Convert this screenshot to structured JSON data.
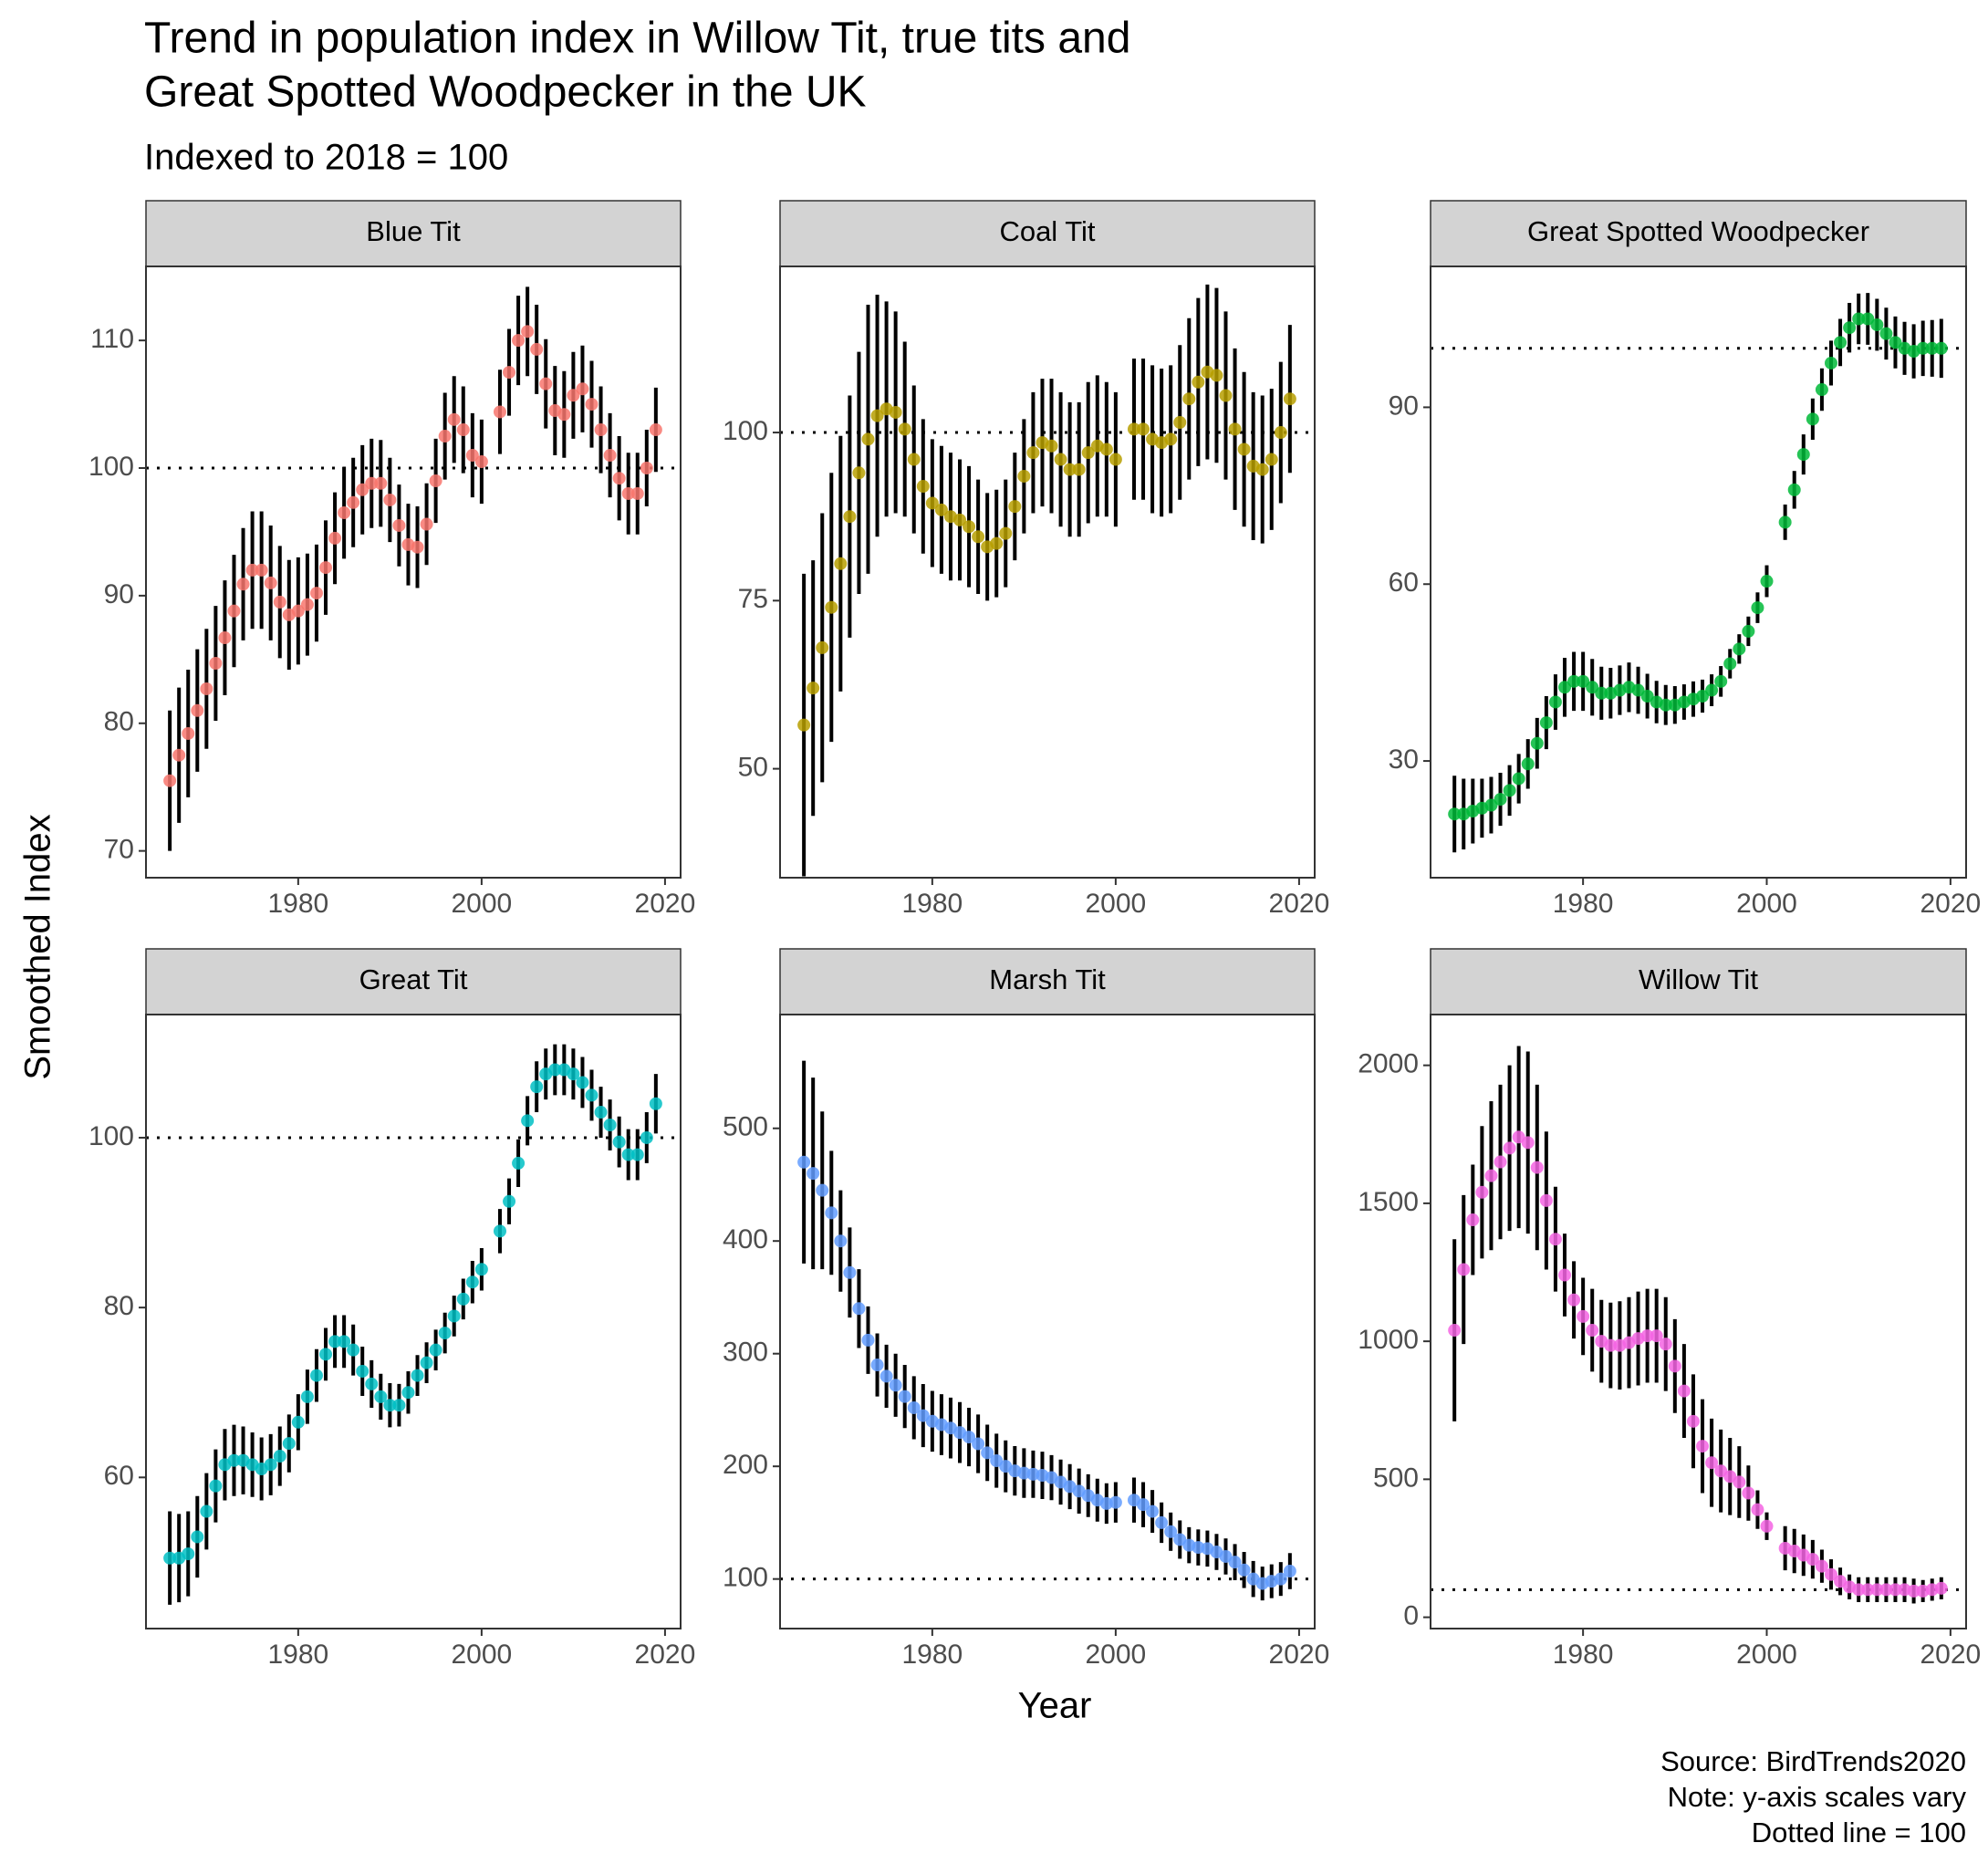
{
  "title": [
    "Trend in population index in Willow Tit, true tits and",
    "Great Spotted Woodpecker in the UK"
  ],
  "subtitle": "Indexed to 2018 = 100",
  "x_label": "Year",
  "y_label": "Smoothed Index",
  "caption": [
    "Source: BirdTrends2020",
    "Note: y-axis scales vary",
    "Dotted line = 100"
  ],
  "chart_data": [
    {
      "type": "errorbar",
      "title": "Blue Tit",
      "color": "#F8766D",
      "x": [
        1966,
        1967,
        1968,
        1969,
        1970,
        1971,
        1972,
        1973,
        1974,
        1975,
        1976,
        1977,
        1978,
        1979,
        1980,
        1981,
        1982,
        1983,
        1984,
        1985,
        1986,
        1987,
        1988,
        1989,
        1990,
        1991,
        1992,
        1993,
        1994,
        1995,
        1996,
        1997,
        1998,
        1999,
        2000,
        2002,
        2003,
        2004,
        2005,
        2006,
        2007,
        2008,
        2009,
        2010,
        2011,
        2012,
        2013,
        2014,
        2015,
        2016,
        2017,
        2018,
        2019
      ],
      "values": [
        75.5,
        77.5,
        79.2,
        81,
        82.7,
        84.7,
        86.7,
        88.8,
        90.9,
        92,
        92,
        91,
        89.5,
        88.5,
        88.8,
        89.3,
        90.2,
        92.2,
        94.5,
        96.5,
        97.3,
        98.3,
        98.8,
        98.8,
        97.5,
        95.5,
        94,
        93.8,
        95.6,
        99,
        102.5,
        103.8,
        103,
        101,
        100.5,
        104.4,
        107.5,
        110,
        110.7,
        109.3,
        106.6,
        104.5,
        104.2,
        105.7,
        106.2,
        105,
        103,
        101,
        99.2,
        98,
        98,
        100,
        103
      ],
      "errors": [
        5.5,
        5.3,
        5,
        4.8,
        4.7,
        4.5,
        4.5,
        4.4,
        4.4,
        4.6,
        4.6,
        4.5,
        4.4,
        4.3,
        4.2,
        4,
        3.8,
        3.7,
        3.6,
        3.6,
        3.5,
        3.5,
        3.5,
        3.4,
        3.3,
        3.2,
        3.2,
        3.2,
        3.2,
        3.3,
        3.4,
        3.4,
        3.4,
        3.3,
        3.3,
        3.3,
        3.4,
        3.5,
        3.5,
        3.5,
        3.5,
        3.5,
        3.4,
        3.4,
        3.4,
        3.4,
        3.4,
        3.3,
        3.3,
        3.2,
        3.2,
        3,
        3.3
      ],
      "xlim": [
        1963.4,
        2021.7
      ],
      "xticks": [
        1980,
        2000,
        2020
      ],
      "ylim": [
        67.9,
        115.8
      ],
      "yticks": [
        70,
        80,
        90,
        100,
        110
      ],
      "hline": 100
    },
    {
      "type": "errorbar",
      "title": "Coal Tit",
      "color": "#B79F00",
      "x": [
        1966,
        1967,
        1968,
        1969,
        1970,
        1971,
        1972,
        1973,
        1974,
        1975,
        1976,
        1977,
        1978,
        1979,
        1980,
        1981,
        1982,
        1983,
        1984,
        1985,
        1986,
        1987,
        1988,
        1989,
        1990,
        1991,
        1992,
        1993,
        1994,
        1995,
        1996,
        1997,
        1998,
        1999,
        2000,
        2002,
        2003,
        2004,
        2005,
        2006,
        2007,
        2008,
        2009,
        2010,
        2011,
        2012,
        2013,
        2014,
        2015,
        2016,
        2017,
        2018,
        2019
      ],
      "values": [
        56.5,
        62,
        68,
        74,
        80.5,
        87.5,
        94,
        99,
        102.5,
        103.5,
        103,
        100.5,
        96,
        92,
        89.5,
        88.5,
        87.5,
        87,
        86,
        84.5,
        83,
        83.5,
        85,
        89,
        93.5,
        97,
        98.5,
        98,
        96,
        94.5,
        94.5,
        97,
        98,
        97.5,
        96,
        100.5,
        100.5,
        99,
        98.5,
        99,
        101.5,
        105,
        107.5,
        109,
        108.5,
        105.5,
        100.5,
        97.5,
        95,
        94.5,
        96,
        100,
        105
      ],
      "errors": [
        22.5,
        19,
        20,
        20,
        19,
        18,
        18,
        20,
        18,
        16,
        15,
        13,
        11,
        10,
        9.5,
        9.5,
        9.5,
        9,
        9,
        8.5,
        8,
        8,
        8,
        8,
        8.5,
        9,
        9.5,
        10,
        10,
        10,
        10,
        10.5,
        10.5,
        10,
        10,
        10.5,
        10.5,
        11,
        11,
        11,
        11.5,
        12,
        12.5,
        13,
        13,
        12.5,
        12,
        11.5,
        11,
        11,
        10.5,
        10.5,
        11
      ],
      "xlim": [
        1963.4,
        2021.7
      ],
      "xticks": [
        1980,
        2000,
        2020
      ],
      "ylim": [
        33.8,
        124.7
      ],
      "yticks": [
        50,
        75,
        100
      ],
      "hline": 100
    },
    {
      "type": "errorbar",
      "title": "Great Spotted Woodpecker",
      "color": "#00BA38",
      "x": [
        1966,
        1967,
        1968,
        1969,
        1970,
        1971,
        1972,
        1973,
        1974,
        1975,
        1976,
        1977,
        1978,
        1979,
        1980,
        1981,
        1982,
        1983,
        1984,
        1985,
        1986,
        1987,
        1988,
        1989,
        1990,
        1991,
        1992,
        1993,
        1994,
        1995,
        1996,
        1997,
        1998,
        1999,
        2000,
        2002,
        2003,
        2004,
        2005,
        2006,
        2007,
        2008,
        2009,
        2010,
        2011,
        2012,
        2013,
        2014,
        2015,
        2016,
        2017,
        2018,
        2019
      ],
      "values": [
        21,
        21,
        21.5,
        22,
        22.5,
        23.5,
        25,
        27,
        29.5,
        33,
        36.5,
        40,
        42.5,
        43.5,
        43.5,
        42.5,
        41.5,
        41.5,
        42,
        42.5,
        42,
        41,
        40,
        39.5,
        39.5,
        40,
        40.5,
        41,
        42,
        43.5,
        46.5,
        49,
        52,
        56,
        60.5,
        70.5,
        76,
        82,
        88,
        93,
        97.5,
        101,
        103.5,
        105,
        105,
        104,
        102.5,
        101,
        100,
        99.5,
        100,
        100,
        100
      ],
      "errors": [
        6.5,
        6,
        5.5,
        5,
        4.8,
        4.5,
        4.3,
        4.2,
        4.2,
        4.3,
        4.5,
        4.7,
        5,
        5,
        5,
        4.8,
        4.5,
        4.3,
        4.2,
        4.2,
        4,
        3.8,
        3.6,
        3.4,
        3.2,
        3,
        3,
        2.8,
        2.7,
        2.6,
        2.5,
        2.5,
        2.5,
        2.6,
        2.7,
        3,
        3.2,
        3.4,
        3.5,
        3.6,
        3.8,
        4,
        4.2,
        4.3,
        4.4,
        4.4,
        4.4,
        4.4,
        4.5,
        4.6,
        4.7,
        4.8,
        5
      ],
      "xlim": [
        1963.4,
        2021.7
      ],
      "xticks": [
        1980,
        2000,
        2020
      ],
      "ylim": [
        10.2,
        113.9
      ],
      "yticks": [
        30,
        60,
        90
      ],
      "hline": 100
    },
    {
      "type": "errorbar",
      "title": "Great Tit",
      "color": "#00BFC4",
      "x": [
        1966,
        1967,
        1968,
        1969,
        1970,
        1971,
        1972,
        1973,
        1974,
        1975,
        1976,
        1977,
        1978,
        1979,
        1980,
        1981,
        1982,
        1983,
        1984,
        1985,
        1986,
        1987,
        1988,
        1989,
        1990,
        1991,
        1992,
        1993,
        1994,
        1995,
        1996,
        1997,
        1998,
        1999,
        2000,
        2002,
        2003,
        2004,
        2005,
        2006,
        2007,
        2008,
        2009,
        2010,
        2011,
        2012,
        2013,
        2014,
        2015,
        2016,
        2017,
        2018,
        2019
      ],
      "values": [
        50.5,
        50.5,
        51,
        53,
        56,
        59,
        61.5,
        62,
        62,
        61.5,
        61,
        61.5,
        62.5,
        64,
        66.5,
        69.5,
        72,
        74.5,
        76,
        76,
        75,
        72.5,
        71,
        69.5,
        68.5,
        68.5,
        70,
        72,
        73.5,
        75,
        77,
        79,
        81,
        83,
        84.5,
        89,
        92.5,
        97,
        102,
        106,
        107.5,
        108,
        108,
        107.5,
        106.5,
        105,
        103,
        101.5,
        99.5,
        98,
        98,
        100,
        104
      ],
      "errors": [
        5.5,
        5.2,
        5,
        4.8,
        4.5,
        4.3,
        4.2,
        4.2,
        4,
        3.8,
        3.7,
        3.6,
        3.5,
        3.4,
        3.3,
        3.2,
        3.1,
        3.1,
        3.1,
        3.1,
        3,
        2.9,
        2.8,
        2.7,
        2.6,
        2.5,
        2.5,
        2.4,
        2.4,
        2.4,
        2.4,
        2.4,
        2.4,
        2.5,
        2.5,
        2.6,
        2.7,
        2.8,
        2.9,
        3,
        3,
        3,
        3,
        3,
        3,
        3,
        3,
        3,
        3,
        3,
        3,
        3,
        3.5
      ],
      "xlim": [
        1963.4,
        2021.7
      ],
      "xticks": [
        1980,
        2000,
        2020
      ],
      "ylim": [
        42.2,
        114.5
      ],
      "yticks": [
        60,
        80,
        100
      ],
      "hline": 100
    },
    {
      "type": "errorbar",
      "title": "Marsh Tit",
      "color": "#619CFF",
      "x": [
        1966,
        1967,
        1968,
        1969,
        1970,
        1971,
        1972,
        1973,
        1974,
        1975,
        1976,
        1977,
        1978,
        1979,
        1980,
        1981,
        1982,
        1983,
        1984,
        1985,
        1986,
        1987,
        1988,
        1989,
        1990,
        1991,
        1992,
        1993,
        1994,
        1995,
        1996,
        1997,
        1998,
        1999,
        2000,
        2002,
        2003,
        2004,
        2005,
        2006,
        2007,
        2008,
        2009,
        2010,
        2011,
        2012,
        2013,
        2014,
        2015,
        2016,
        2017,
        2018,
        2019
      ],
      "values": [
        470,
        460,
        445,
        425,
        400,
        372,
        340,
        312,
        290,
        280,
        272,
        262,
        252,
        245,
        240,
        237,
        234,
        230,
        226,
        220,
        212,
        205,
        200,
        196,
        194,
        193,
        192,
        190,
        186,
        182,
        178,
        174,
        170,
        167,
        168,
        170,
        166,
        160,
        150,
        142,
        135,
        130,
        128,
        127,
        124,
        120,
        115,
        108,
        100,
        96,
        98,
        100,
        107
      ],
      "errors": [
        90,
        85,
        70,
        55,
        45,
        40,
        35,
        30,
        28,
        28,
        28,
        28,
        28,
        28,
        27,
        27,
        27,
        27,
        26,
        26,
        25,
        24,
        23,
        22,
        22,
        21,
        21,
        20,
        20,
        20,
        20,
        19,
        19,
        18,
        18,
        20,
        20,
        19,
        18,
        17,
        17,
        16,
        16,
        16,
        16,
        16,
        16,
        16,
        16,
        15,
        15,
        15,
        16
      ],
      "xlim": [
        1963.4,
        2021.7
      ],
      "xticks": [
        1980,
        2000,
        2020
      ],
      "ylim": [
        56,
        601
      ],
      "yticks": [
        100,
        200,
        300,
        400,
        500
      ],
      "hline": 100
    },
    {
      "type": "errorbar",
      "title": "Willow Tit",
      "color": "#F564E3",
      "x": [
        1966,
        1967,
        1968,
        1969,
        1970,
        1971,
        1972,
        1973,
        1974,
        1975,
        1976,
        1977,
        1978,
        1979,
        1980,
        1981,
        1982,
        1983,
        1984,
        1985,
        1986,
        1987,
        1988,
        1989,
        1990,
        1991,
        1992,
        1993,
        1994,
        1995,
        1996,
        1997,
        1998,
        1999,
        2000,
        2002,
        2003,
        2004,
        2005,
        2006,
        2007,
        2008,
        2009,
        2010,
        2011,
        2012,
        2013,
        2014,
        2015,
        2016,
        2017,
        2018,
        2019
      ],
      "values": [
        1040,
        1260,
        1440,
        1540,
        1600,
        1650,
        1700,
        1740,
        1720,
        1630,
        1510,
        1370,
        1240,
        1150,
        1090,
        1040,
        1000,
        985,
        985,
        995,
        1010,
        1020,
        1020,
        990,
        910,
        820,
        710,
        620,
        560,
        530,
        510,
        490,
        450,
        390,
        330,
        250,
        240,
        225,
        210,
        185,
        155,
        130,
        110,
        100,
        100,
        100,
        100,
        100,
        100,
        95,
        95,
        100,
        105
      ],
      "errors": [
        330,
        270,
        200,
        240,
        270,
        280,
        300,
        330,
        330,
        300,
        250,
        190,
        150,
        140,
        140,
        150,
        150,
        155,
        160,
        165,
        170,
        170,
        170,
        170,
        170,
        170,
        170,
        170,
        160,
        150,
        140,
        130,
        100,
        70,
        50,
        80,
        80,
        75,
        70,
        60,
        55,
        50,
        45,
        45,
        45,
        45,
        45,
        45,
        45,
        45,
        40,
        40,
        40
      ],
      "xlim": [
        1963.4,
        2021.7
      ],
      "xticks": [
        1980,
        2000,
        2020
      ],
      "ylim": [
        -41,
        2184
      ],
      "yticks": [
        0,
        500,
        1000,
        1500,
        2000
      ],
      "hline": 100
    }
  ]
}
